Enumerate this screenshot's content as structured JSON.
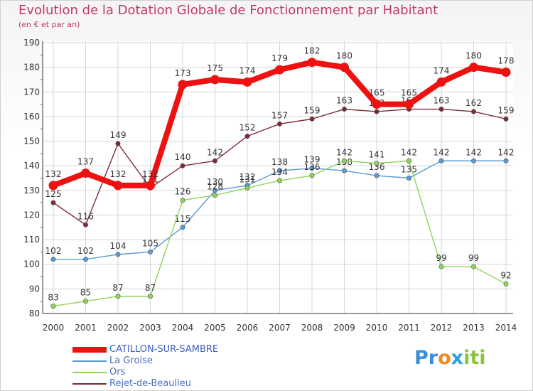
{
  "header": {
    "title": "Evolution de la Dotation Globale de Fonctionnement par Habitant",
    "subtitle": "(en € et par an)"
  },
  "brand": {
    "parts": [
      "Pr",
      "o",
      "x",
      "iti"
    ],
    "colors": [
      "#3a8fd6",
      "#f08a1c",
      "#2f9fe0",
      "#8cc43c"
    ]
  },
  "chart_data": {
    "type": "line",
    "title": "Evolution de la Dotation Globale de Fonctionnement par Habitant",
    "subtitle": "(en € et par an)",
    "xlabel": "",
    "ylabel": "",
    "x": [
      "2000",
      "2001",
      "2002",
      "2003",
      "2004",
      "2005",
      "2006",
      "2007",
      "2008",
      "2009",
      "2010",
      "2011",
      "2012",
      "2013",
      "2014"
    ],
    "ylim": [
      80,
      190
    ],
    "yticks": [
      80,
      90,
      100,
      110,
      120,
      130,
      140,
      150,
      160,
      170,
      180,
      190
    ],
    "grid": true,
    "legend_position": "bottom-left",
    "series": [
      {
        "name": "CATILLON-SUR-SAMBRE",
        "color": "#ee1111",
        "values": [
          132,
          137,
          132,
          132,
          173,
          175,
          174,
          179,
          182,
          180,
          165,
          165,
          174,
          180,
          178
        ],
        "labels": [
          "132",
          "137",
          "132",
          "132",
          "173",
          "175",
          "174",
          "179",
          "182",
          "180",
          "165",
          "165",
          "174",
          "180",
          "178"
        ],
        "emphasis": true
      },
      {
        "name": "La Groise",
        "color": "#5b9bd5",
        "values": [
          102,
          102,
          104,
          105,
          115,
          130,
          132,
          138,
          139,
          138,
          136,
          135,
          142,
          142,
          142
        ],
        "labels": [
          "102",
          "102",
          "104",
          "105",
          "115",
          "130",
          "132",
          "138",
          "139",
          "138",
          "136",
          "135",
          "142",
          "142",
          "142"
        ],
        "emphasis": false
      },
      {
        "name": "Ors",
        "color": "#8fd45a",
        "values": [
          83,
          85,
          87,
          87,
          126,
          128,
          131,
          134,
          136,
          142,
          141,
          142,
          99,
          99,
          92
        ],
        "labels": [
          "83",
          "85",
          "87",
          "87",
          "126",
          "128",
          "131",
          "134",
          "136",
          "142",
          "141",
          "142",
          "99",
          "99",
          "92"
        ],
        "emphasis": false
      },
      {
        "name": "Rejet-de-Beaulieu",
        "color": "#7b2b36",
        "values": [
          125,
          116,
          149,
          131,
          140,
          142,
          152,
          157,
          159,
          163,
          162,
          163,
          163,
          162,
          159
        ],
        "labels": [
          "125",
          "116",
          "149",
          "131",
          "140",
          "142",
          "152",
          "157",
          "159",
          "163",
          "162",
          "163",
          "163",
          "162",
          "159"
        ],
        "emphasis": false
      }
    ]
  }
}
